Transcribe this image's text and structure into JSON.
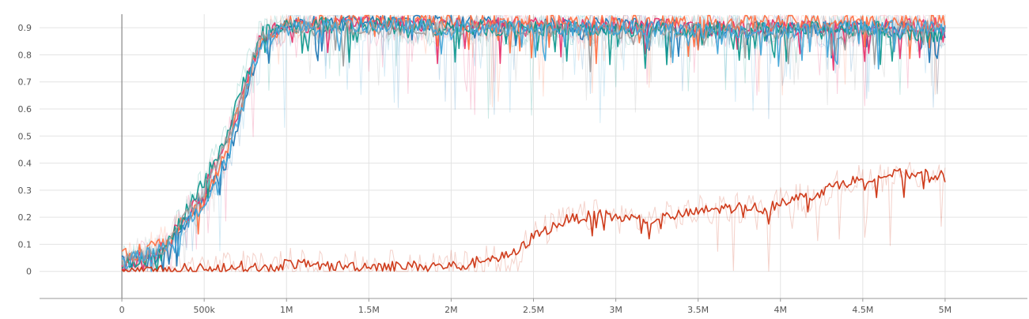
{
  "chart_data": {
    "type": "line",
    "xlim": [
      -500000,
      5500000
    ],
    "ylim": [
      -0.1,
      0.95
    ],
    "x_ticks": [
      {
        "value": 0,
        "label": "0"
      },
      {
        "value": 500000,
        "label": "500k"
      },
      {
        "value": 1000000,
        "label": "1M"
      },
      {
        "value": 1500000,
        "label": "1.5M"
      },
      {
        "value": 2000000,
        "label": "2M"
      },
      {
        "value": 2500000,
        "label": "2.5M"
      },
      {
        "value": 3000000,
        "label": "3M"
      },
      {
        "value": 3500000,
        "label": "3.5M"
      },
      {
        "value": 4000000,
        "label": "4M"
      },
      {
        "value": 4500000,
        "label": "4.5M"
      },
      {
        "value": 5000000,
        "label": "5M"
      }
    ],
    "y_ticks": [
      {
        "value": 0,
        "label": "0"
      },
      {
        "value": 0.1,
        "label": "0.1"
      },
      {
        "value": 0.2,
        "label": "0.2"
      },
      {
        "value": 0.3,
        "label": "0.3"
      },
      {
        "value": 0.4,
        "label": "0.4"
      },
      {
        "value": 0.5,
        "label": "0.5"
      },
      {
        "value": 0.6,
        "label": "0.6"
      },
      {
        "value": 0.7,
        "label": "0.7"
      },
      {
        "value": 0.8,
        "label": "0.8"
      },
      {
        "value": 0.9,
        "label": "0.9"
      }
    ],
    "grid": true,
    "legend": "none",
    "series": [
      {
        "color": "#1f77b4",
        "x": [
          0,
          250000,
          500000,
          650000,
          750000,
          850000,
          1000000,
          1500000,
          2000000,
          2500000,
          3000000,
          3500000,
          4000000,
          4500000,
          5000000
        ],
        "y": [
          0.03,
          0.06,
          0.28,
          0.42,
          0.65,
          0.86,
          0.91,
          0.92,
          0.92,
          0.91,
          0.91,
          0.9,
          0.9,
          0.9,
          0.89
        ]
      },
      {
        "color": "#e8336d",
        "x": [
          0,
          250000,
          500000,
          650000,
          750000,
          850000,
          1000000,
          1500000,
          2000000,
          2500000,
          3000000,
          3500000,
          4000000,
          4500000,
          5000000
        ],
        "y": [
          0.02,
          0.08,
          0.3,
          0.5,
          0.7,
          0.87,
          0.91,
          0.92,
          0.91,
          0.91,
          0.91,
          0.9,
          0.9,
          0.9,
          0.91
        ]
      },
      {
        "color": "#ff7043",
        "x": [
          0,
          250000,
          500000,
          650000,
          750000,
          850000,
          1000000,
          1500000,
          2000000,
          2500000,
          3000000,
          3500000,
          4000000,
          4500000,
          5000000
        ],
        "y": [
          0.05,
          0.1,
          0.26,
          0.46,
          0.68,
          0.85,
          0.92,
          0.93,
          0.92,
          0.92,
          0.92,
          0.92,
          0.92,
          0.92,
          0.93
        ]
      },
      {
        "color": "#11998e",
        "x": [
          0,
          250000,
          500000,
          650000,
          750000,
          850000,
          1000000,
          1500000,
          2000000,
          2500000,
          3000000,
          3500000,
          4000000,
          4500000,
          5000000
        ],
        "y": [
          0.03,
          0.07,
          0.33,
          0.52,
          0.72,
          0.88,
          0.91,
          0.91,
          0.9,
          0.9,
          0.89,
          0.89,
          0.89,
          0.9,
          0.87
        ]
      },
      {
        "color": "#9e9e9e",
        "x": [
          0,
          250000,
          500000,
          650000,
          750000,
          850000,
          1000000,
          1500000,
          2000000,
          2500000,
          3000000,
          3500000,
          4000000,
          4500000,
          5000000
        ],
        "y": [
          0.04,
          0.09,
          0.3,
          0.49,
          0.7,
          0.87,
          0.9,
          0.9,
          0.9,
          0.9,
          0.89,
          0.89,
          0.89,
          0.89,
          0.9
        ]
      },
      {
        "color": "#42a5d8",
        "x": [
          0,
          250000,
          500000,
          650000,
          750000,
          850000,
          1000000,
          1500000,
          2000000,
          2500000,
          3000000,
          3500000,
          4000000,
          4500000,
          5000000
        ],
        "y": [
          0.03,
          0.08,
          0.25,
          0.44,
          0.66,
          0.85,
          0.9,
          0.91,
          0.9,
          0.9,
          0.9,
          0.89,
          0.89,
          0.9,
          0.9
        ]
      },
      {
        "color": "#cc3311",
        "x": [
          0,
          100000,
          300000,
          500000,
          700000,
          900000,
          1000000,
          1200000,
          1500000,
          1800000,
          2000000,
          2100000,
          2200000,
          2300000,
          2400000,
          2500000,
          2600000,
          2700000,
          2800000,
          2900000,
          3000000,
          3200000,
          3400000,
          3500000,
          3600000,
          3800000,
          3900000,
          4000000,
          4100000,
          4200000,
          4300000,
          4400000,
          4500000,
          4700000,
          4800000,
          4900000,
          5000000
        ],
        "y": [
          0.0,
          0.0,
          0.01,
          0.01,
          0.02,
          0.01,
          0.03,
          0.02,
          0.02,
          0.02,
          0.02,
          0.02,
          0.05,
          0.05,
          0.07,
          0.13,
          0.16,
          0.19,
          0.2,
          0.21,
          0.2,
          0.19,
          0.21,
          0.22,
          0.23,
          0.24,
          0.23,
          0.26,
          0.27,
          0.28,
          0.31,
          0.33,
          0.34,
          0.36,
          0.36,
          0.36,
          0.35
        ]
      }
    ]
  }
}
